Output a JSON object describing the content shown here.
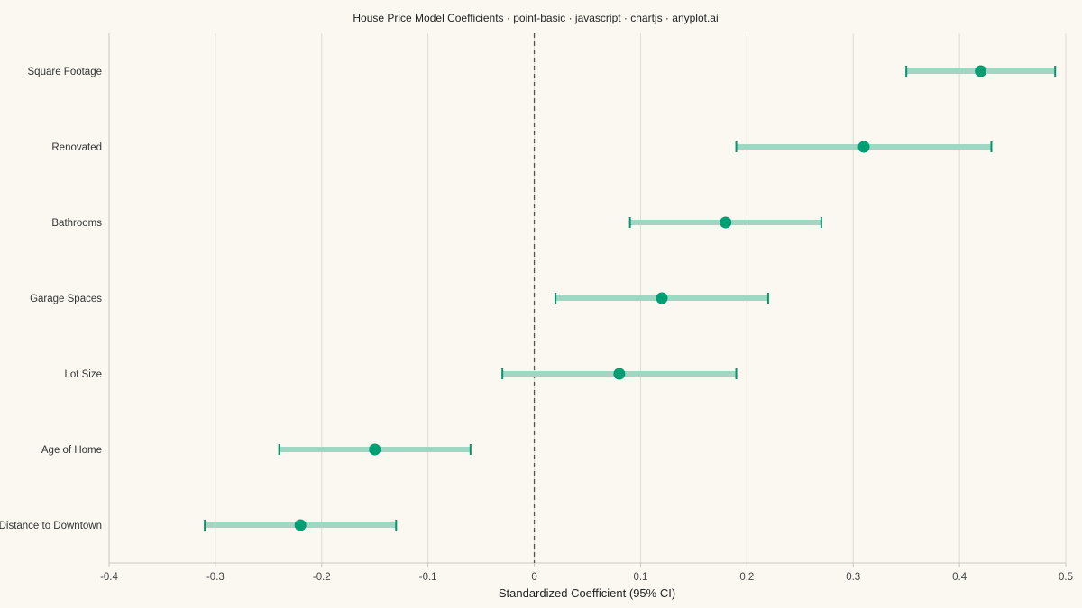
{
  "chart_data": {
    "type": "scatter",
    "title": "House Price Model Coefficients · point-basic · javascript · chartjs · anyplot.ai",
    "xlabel": "Standardized Coefficient (95% CI)",
    "ylabel": "",
    "xlim": [
      -0.4,
      0.5
    ],
    "x_ticks": [
      "-0.4",
      "-0.3",
      "-0.2",
      "-0.1",
      "0",
      "0.1",
      "0.2",
      "0.3",
      "0.4",
      "0.5"
    ],
    "x_tick_values": [
      -0.4,
      -0.3,
      -0.2,
      -0.1,
      0,
      0.1,
      0.2,
      0.3,
      0.4,
      0.5
    ],
    "reference_line": 0,
    "grid": "vertical",
    "legend": "none",
    "colors": {
      "point": "#009E73",
      "ci_bar": "#9FD7C2",
      "cap": "#00976B",
      "background": "#FAF8F1",
      "grid": "#DDDBD4",
      "reference": "#555555"
    },
    "categories": [
      "Square Footage",
      "Renovated",
      "Bathrooms",
      "Garage Spaces",
      "Lot Size",
      "Age of Home",
      "Distance to Downtown"
    ],
    "estimates": [
      0.42,
      0.31,
      0.18,
      0.12,
      0.08,
      -0.15,
      -0.22
    ],
    "ci_low": [
      0.35,
      0.19,
      0.09,
      0.02,
      -0.03,
      -0.24,
      -0.31
    ],
    "ci_high": [
      0.49,
      0.43,
      0.27,
      0.22,
      0.19,
      -0.06,
      -0.13
    ]
  }
}
